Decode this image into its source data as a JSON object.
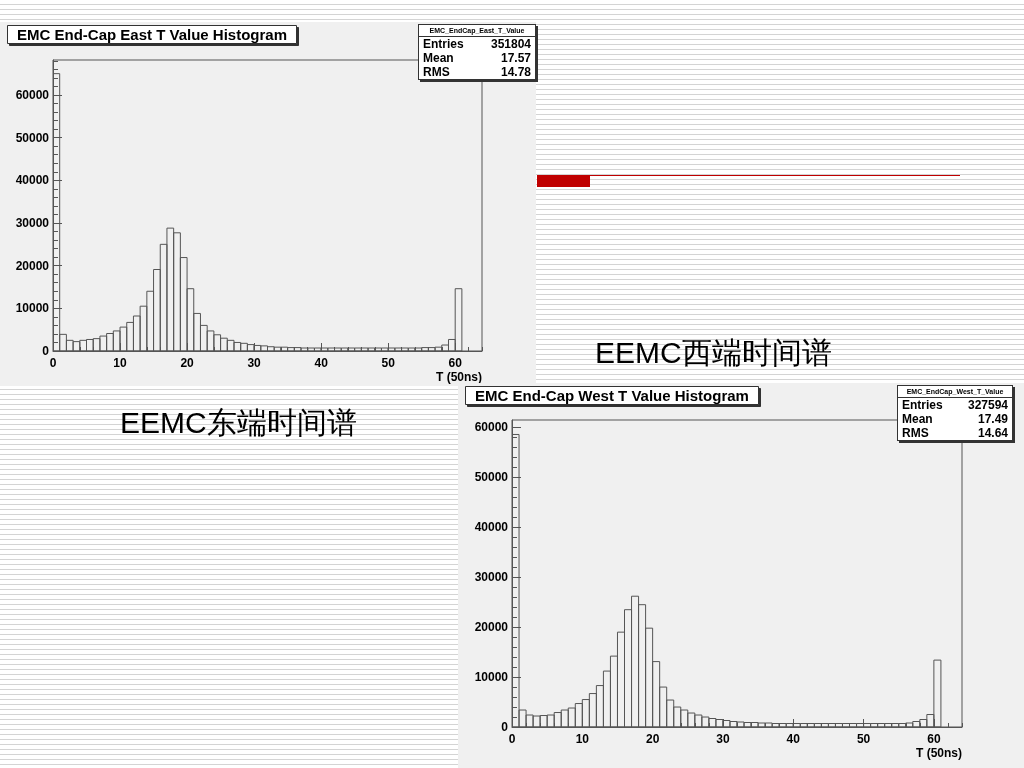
{
  "chart_data": [
    {
      "type": "histogram",
      "title": "EMC End-Cap East T Value Histogram",
      "subtitle": "EEMC东端时间谱",
      "xlabel": "T (50ns)",
      "annotations": [
        "EMC_EndCap_East_T_Value",
        "Entries 351804",
        "Mean 17.57",
        "RMS 14.78"
      ],
      "bins": [
        0,
        1,
        2,
        3,
        4,
        5,
        6,
        7,
        8,
        9,
        10,
        11,
        12,
        13,
        14,
        15,
        16,
        17,
        18,
        19,
        20,
        21,
        22,
        23,
        24,
        25,
        26,
        27,
        28,
        29,
        30,
        31,
        32,
        33,
        34,
        35,
        36,
        37,
        38,
        39,
        40,
        41,
        42,
        43,
        44,
        45,
        46,
        47,
        48,
        49,
        50,
        51,
        52,
        53,
        54,
        55,
        56,
        57,
        58,
        59,
        60,
        61,
        62,
        63,
        64
      ],
      "values": [
        65000,
        3900,
        2500,
        2200,
        2500,
        2700,
        2900,
        3500,
        4100,
        4700,
        5600,
        6700,
        8200,
        10500,
        14000,
        19100,
        25000,
        28800,
        27700,
        21900,
        14600,
        8800,
        6000,
        4700,
        3800,
        3000,
        2500,
        2000,
        1800,
        1500,
        1300,
        1200,
        1000,
        900,
        900,
        800,
        800,
        700,
        700,
        700,
        700,
        700,
        700,
        700,
        700,
        700,
        700,
        700,
        700,
        700,
        700,
        700,
        700,
        700,
        700,
        800,
        800,
        900,
        1400,
        2700,
        14600,
        0,
        0,
        0
      ],
      "xlim": [
        0,
        64
      ],
      "xticks": [
        0,
        10,
        20,
        30,
        40,
        50,
        60
      ],
      "ylim": [
        0,
        68200
      ],
      "yticks": [
        0,
        10000,
        20000,
        30000,
        40000,
        50000,
        60000
      ]
    },
    {
      "type": "histogram",
      "title": "EMC End-Cap West T Value Histogram",
      "subtitle": "EEMC西端时间谱",
      "xlabel": "T (50ns)",
      "annotations": [
        "EMC_EndCap_West_T_Value",
        "Entries 327594",
        "Mean 17.49",
        "RMS 14.64"
      ],
      "bins": [
        0,
        1,
        2,
        3,
        4,
        5,
        6,
        7,
        8,
        9,
        10,
        11,
        12,
        13,
        14,
        15,
        16,
        17,
        18,
        19,
        20,
        21,
        22,
        23,
        24,
        25,
        26,
        27,
        28,
        29,
        30,
        31,
        32,
        33,
        34,
        35,
        36,
        37,
        38,
        39,
        40,
        41,
        42,
        43,
        44,
        45,
        46,
        47,
        48,
        49,
        50,
        51,
        52,
        53,
        54,
        55,
        56,
        57,
        58,
        59,
        60,
        61,
        62,
        63,
        64
      ],
      "values": [
        58600,
        3400,
        2400,
        2200,
        2300,
        2400,
        2900,
        3400,
        3800,
        4700,
        5500,
        6700,
        8300,
        11200,
        14200,
        19000,
        23500,
        26200,
        24500,
        19800,
        13100,
        8000,
        5400,
        4000,
        3400,
        2800,
        2400,
        2000,
        1700,
        1500,
        1300,
        1100,
        1000,
        900,
        900,
        800,
        800,
        700,
        700,
        700,
        700,
        700,
        700,
        700,
        700,
        700,
        700,
        700,
        700,
        700,
        700,
        700,
        700,
        700,
        700,
        700,
        800,
        1100,
        1500,
        2500,
        13400,
        0,
        0,
        0
      ],
      "xlim": [
        0,
        64
      ],
      "xticks": [
        0,
        10,
        20,
        30,
        40,
        50,
        60
      ],
      "ylim": [
        0,
        61500
      ],
      "yticks": [
        0,
        10000,
        20000,
        30000,
        40000,
        50000,
        60000
      ]
    }
  ]
}
